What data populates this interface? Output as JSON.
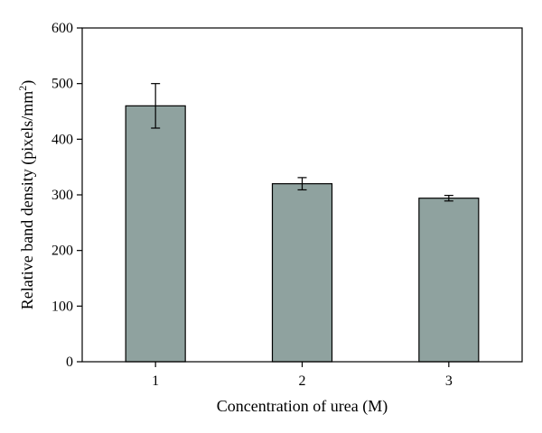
{
  "chart_data": {
    "type": "bar",
    "categories": [
      "1",
      "2",
      "3"
    ],
    "values": [
      460,
      320,
      294
    ],
    "errors": [
      40,
      11,
      5
    ],
    "xlabel": "Concentration of urea (M)",
    "ylabel": {
      "text": "Relative band density (pixels/mm",
      "superscript": "2",
      "close": ")"
    },
    "ylim": [
      0,
      600
    ],
    "yticks": [
      0,
      100,
      200,
      300,
      400,
      500,
      600
    ],
    "grid": false,
    "bar_color": "#8fa29f",
    "bar_edge_color": "#000000"
  }
}
